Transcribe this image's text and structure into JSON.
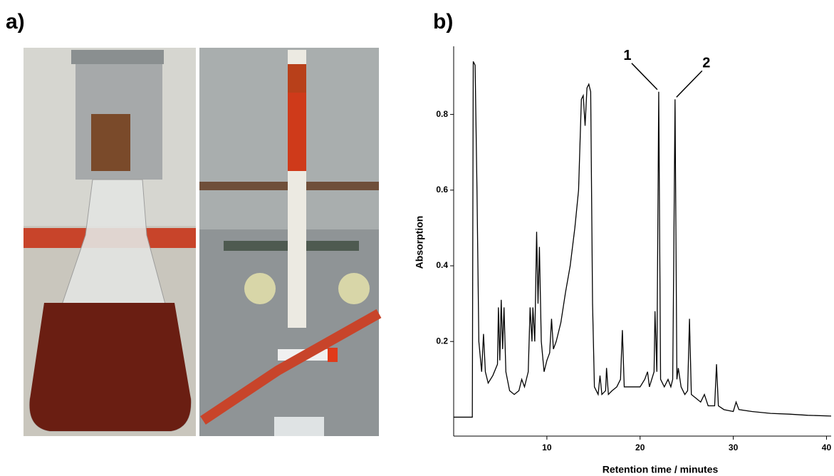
{
  "panel_a": {
    "label": "a)"
  },
  "chart_data": {
    "type": "line",
    "panel_label": "b)",
    "xlabel": "Retention time / minutes",
    "ylabel": "Absorption",
    "color": "#000000",
    "x": [
      0,
      2.0,
      2.1,
      2.3,
      2.5,
      2.7,
      3.0,
      3.2,
      3.4,
      3.7,
      4.2,
      4.7,
      4.8,
      4.95,
      5.1,
      5.25,
      5.4,
      5.6,
      6.0,
      6.5,
      7.0,
      7.3,
      7.6,
      8.0,
      8.2,
      8.4,
      8.5,
      8.7,
      8.9,
      9.05,
      9.2,
      9.4,
      9.7,
      10.0,
      10.3,
      10.5,
      10.7,
      11.0,
      11.5,
      12.0,
      12.5,
      13.0,
      13.4,
      13.7,
      13.9,
      14.1,
      14.3,
      14.5,
      14.7,
      14.9,
      15.1,
      15.5,
      15.7,
      15.9,
      16.3,
      16.4,
      16.6,
      17.0,
      17.5,
      17.9,
      18.1,
      18.3,
      19.0,
      20.0,
      20.5,
      20.8,
      21.0,
      21.5,
      21.6,
      21.8,
      22.0,
      22.2,
      22.6,
      23.0,
      23.3,
      23.5,
      23.6,
      23.75,
      23.95,
      24.1,
      24.4,
      24.8,
      25.1,
      25.3,
      25.5,
      26.0,
      26.5,
      26.9,
      27.3,
      28.0,
      28.2,
      28.4,
      29.0,
      30.0,
      30.3,
      30.6,
      32.0,
      34.0,
      36.0,
      38.0,
      40.5
    ],
    "values": [
      0,
      0,
      0.94,
      0.93,
      0.6,
      0.2,
      0.12,
      0.22,
      0.12,
      0.09,
      0.11,
      0.14,
      0.29,
      0.15,
      0.31,
      0.18,
      0.29,
      0.12,
      0.07,
      0.06,
      0.07,
      0.1,
      0.08,
      0.12,
      0.29,
      0.2,
      0.29,
      0.2,
      0.49,
      0.3,
      0.45,
      0.2,
      0.12,
      0.15,
      0.17,
      0.26,
      0.18,
      0.2,
      0.25,
      0.33,
      0.4,
      0.5,
      0.6,
      0.84,
      0.85,
      0.77,
      0.87,
      0.88,
      0.86,
      0.3,
      0.08,
      0.06,
      0.11,
      0.06,
      0.07,
      0.13,
      0.06,
      0.07,
      0.08,
      0.1,
      0.23,
      0.08,
      0.08,
      0.08,
      0.1,
      0.12,
      0.08,
      0.12,
      0.28,
      0.12,
      0.86,
      0.1,
      0.08,
      0.1,
      0.08,
      0.1,
      0.38,
      0.84,
      0.1,
      0.13,
      0.08,
      0.06,
      0.07,
      0.26,
      0.06,
      0.05,
      0.04,
      0.06,
      0.03,
      0.03,
      0.14,
      0.03,
      0.02,
      0.015,
      0.04,
      0.02,
      0.015,
      0.01,
      0.008,
      0.005,
      0.003
    ],
    "xlim": [
      0,
      40.5
    ],
    "ylim": [
      -0.05,
      0.98
    ],
    "xticks": [
      10,
      20,
      30,
      40
    ],
    "yticks": [
      0.2,
      0.4,
      0.6,
      0.8
    ],
    "annotations": [
      {
        "text": "1",
        "x": 22.0,
        "y": 0.86
      },
      {
        "text": "2",
        "x": 23.75,
        "y": 0.84
      }
    ]
  }
}
